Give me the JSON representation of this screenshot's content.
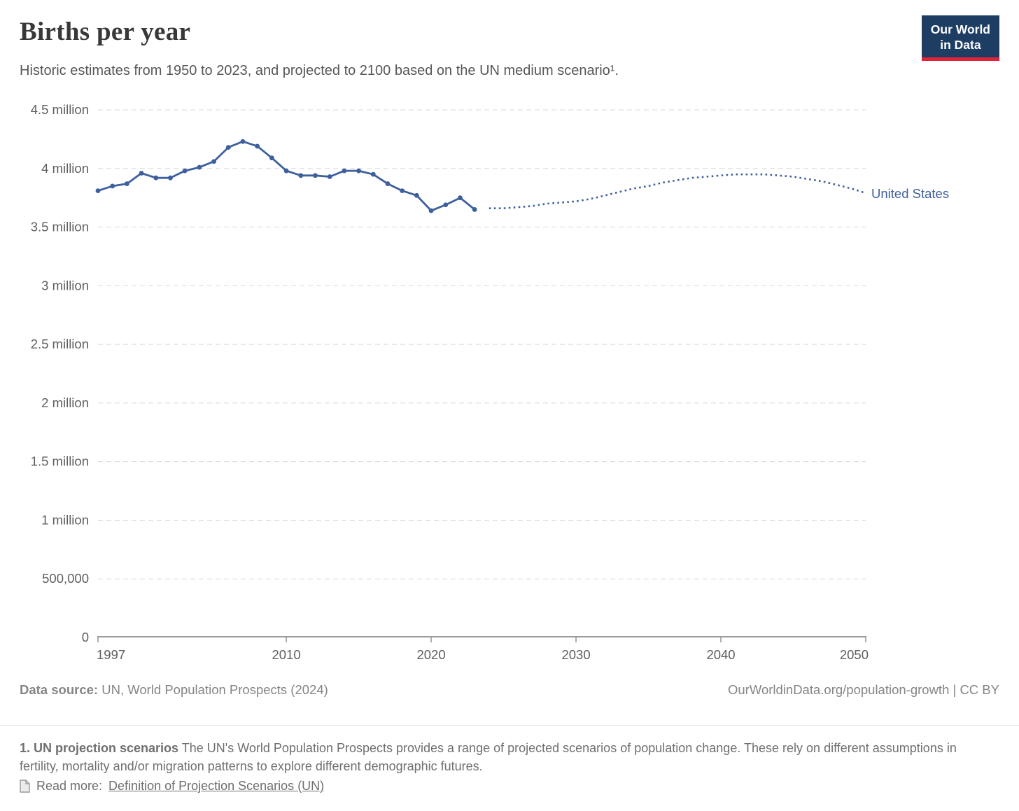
{
  "header": {
    "title": "Births per year",
    "subtitle": "Historic estimates from 1950 to 2023, and projected to 2100 based on the UN medium scenario¹.",
    "logo": {
      "line1": "Our World",
      "line2": "in Data",
      "bg_color": "#1d3d63",
      "accent_color": "#e0233a"
    }
  },
  "chart_data": {
    "type": "line",
    "title": "Births per year",
    "xlabel": "",
    "ylabel": "",
    "units": "million births per year",
    "xlim": [
      1997,
      2050
    ],
    "ylim_millions": [
      0,
      4.5
    ],
    "grid": "horizontal dashed",
    "legend_position": "end-of-line label",
    "line_color": "#3e5f9e",
    "x_ticks": [
      1997,
      2010,
      2020,
      2030,
      2040,
      2050
    ],
    "y_ticks": [
      {
        "value": 0.0,
        "label": "0"
      },
      {
        "value": 0.5,
        "label": "500,000"
      },
      {
        "value": 1.0,
        "label": "1 million"
      },
      {
        "value": 1.5,
        "label": "1.5 million"
      },
      {
        "value": 2.0,
        "label": "2 million"
      },
      {
        "value": 2.5,
        "label": "2.5 million"
      },
      {
        "value": 3.0,
        "label": "3 million"
      },
      {
        "value": 3.5,
        "label": "3.5 million"
      },
      {
        "value": 4.0,
        "label": "4 million"
      },
      {
        "value": 4.5,
        "label": "4.5 million"
      }
    ],
    "end_label": "United States",
    "series": [
      {
        "name": "United States — historic estimates",
        "style": "solid",
        "markers": true,
        "x": [
          1997,
          1998,
          1999,
          2000,
          2001,
          2002,
          2003,
          2004,
          2005,
          2006,
          2007,
          2008,
          2009,
          2010,
          2011,
          2012,
          2013,
          2014,
          2015,
          2016,
          2017,
          2018,
          2019,
          2020,
          2021,
          2022,
          2023
        ],
        "values_millions": [
          3.81,
          3.85,
          3.87,
          3.96,
          3.92,
          3.92,
          3.98,
          4.01,
          4.06,
          4.18,
          4.23,
          4.19,
          4.09,
          3.98,
          3.94,
          3.94,
          3.93,
          3.98,
          3.98,
          3.95,
          3.87,
          3.81,
          3.77,
          3.64,
          3.69,
          3.75,
          3.65
        ]
      },
      {
        "name": "United States — UN medium projection",
        "style": "dotted",
        "markers": false,
        "x": [
          2024,
          2025,
          2026,
          2027,
          2028,
          2029,
          2030,
          2031,
          2032,
          2033,
          2034,
          2035,
          2036,
          2037,
          2038,
          2039,
          2040,
          2041,
          2042,
          2043,
          2044,
          2045,
          2046,
          2047,
          2048,
          2049,
          2050
        ],
        "values_millions": [
          3.66,
          3.66,
          3.67,
          3.68,
          3.7,
          3.71,
          3.72,
          3.74,
          3.77,
          3.8,
          3.83,
          3.85,
          3.88,
          3.9,
          3.92,
          3.93,
          3.94,
          3.95,
          3.95,
          3.95,
          3.94,
          3.93,
          3.91,
          3.89,
          3.86,
          3.83,
          3.79
        ]
      }
    ]
  },
  "footer": {
    "datasource_label": "Data source:",
    "datasource_value": "UN, World Population Prospects (2024)",
    "rights": "OurWorldinData.org/population-growth | CC BY"
  },
  "footnote": {
    "heading": "1. UN projection scenarios",
    "body": "The UN's World Population Prospects provides a range of projected scenarios of population change. These rely on different assumptions in fertility, mortality and/or migration patterns to explore different demographic futures.",
    "readmore_label": "Read more:",
    "readmore_link": "Definition of Projection Scenarios (UN)",
    "doc_icon": "document-icon"
  }
}
